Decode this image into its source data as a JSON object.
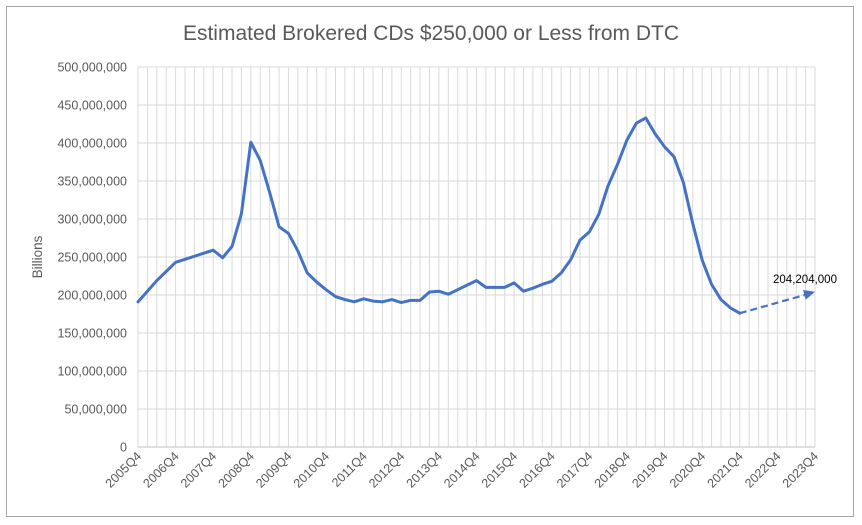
{
  "chart_data": {
    "type": "line",
    "title": "Estimated Brokered CDs $250,000 or Less from DTC",
    "ylabel": "Billions",
    "xlabel": "",
    "ylim": [
      0,
      500000000
    ],
    "y_ticks": [
      "0",
      "50,000,000",
      "100,000,000",
      "150,000,000",
      "200,000,000",
      "250,000,000",
      "300,000,000",
      "350,000,000",
      "400,000,000",
      "450,000,000",
      "500,000,000"
    ],
    "x_tick_labels": [
      "2005Q4",
      "2006Q4",
      "2007Q4",
      "2008Q4",
      "2009Q4",
      "2010Q4",
      "2011Q4",
      "2012Q4",
      "2013Q4",
      "2014Q4",
      "2015Q4",
      "2016Q4",
      "2017Q4",
      "2018Q4",
      "2019Q4",
      "2020Q4",
      "2021Q4",
      "2022Q4",
      "2023Q4"
    ],
    "grid": true,
    "series": [
      {
        "x_start": "2005Q4",
        "values": [
          191000000,
          205000000,
          219000000,
          231000000,
          243000000,
          247000000,
          251000000,
          255000000,
          259000000,
          249000000,
          264000000,
          307000000,
          401000000,
          377000000,
          335000000,
          290000000,
          281000000,
          258000000,
          229000000,
          217000000,
          207000000,
          198000000,
          194000000,
          191000000,
          195000000,
          192000000,
          191000000,
          194000000,
          190000000,
          193000000,
          193000000,
          204000000,
          205000000,
          201000000,
          207000000,
          213000000,
          219000000,
          210000000,
          210000000,
          210000000,
          216000000,
          205000000,
          209000000,
          214000000,
          218000000,
          229000000,
          246000000,
          272000000,
          283000000,
          306000000,
          344000000,
          372000000,
          404000000,
          426000000,
          433000000,
          412000000,
          395000000,
          382000000,
          348000000,
          294000000,
          246000000,
          214000000,
          194000000,
          183000000,
          176000000
        ],
        "color": "#4472c4"
      },
      {
        "x_start": "2021Q4",
        "values": [
          176000000,
          204204000
        ],
        "x_end": "2023Q4",
        "style": "dashed-arrow",
        "color": "#4472c4"
      }
    ],
    "annotations": [
      {
        "text": "204,204,000",
        "x": "2023Q4",
        "y": 204204000
      }
    ]
  }
}
